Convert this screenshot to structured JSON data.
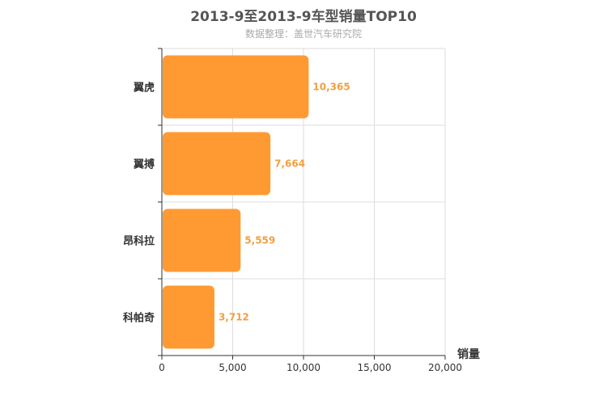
{
  "chart_data": {
    "type": "bar",
    "orientation": "horizontal",
    "title": "2013-9至2013-9车型销量TOP10",
    "subtitle": "数据整理：盖世汽车研究院",
    "categories": [
      "翼虎",
      "翼搏",
      "昂科拉",
      "科帕奇"
    ],
    "values": [
      10365,
      7664,
      5559,
      3712
    ],
    "value_labels": [
      "10,365",
      "7,664",
      "5,559",
      "3,712"
    ],
    "xlabel": "销量",
    "xlim": [
      0,
      20000
    ],
    "xticks": [
      0,
      5000,
      10000,
      15000,
      20000
    ],
    "xtick_labels": [
      "0",
      "5,000",
      "10,000",
      "15,000",
      "20,000"
    ],
    "grid": true,
    "bar_color": "#ff9a33",
    "label_color": "#f0a040"
  }
}
